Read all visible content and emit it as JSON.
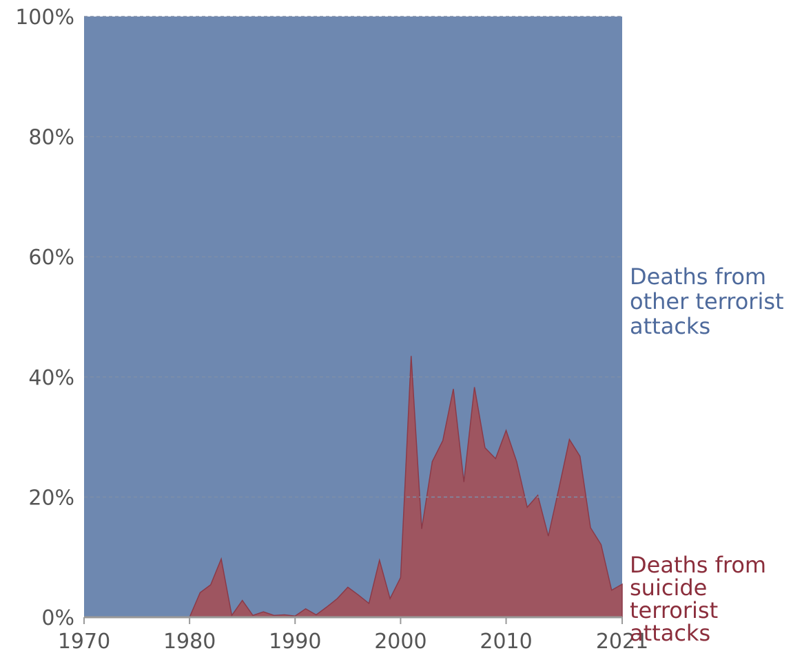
{
  "chart_data": {
    "type": "area",
    "stacked": true,
    "normalized": true,
    "title": "",
    "xlabel": "",
    "ylabel": "",
    "ylim": [
      0,
      100
    ],
    "xlim": [
      1970,
      2021
    ],
    "y_ticks": [
      "0%",
      "20%",
      "40%",
      "60%",
      "80%",
      "100%"
    ],
    "y_tick_values": [
      0,
      20,
      40,
      60,
      80,
      100
    ],
    "x_ticks": [
      "1970",
      "1980",
      "1990",
      "2000",
      "2010",
      "2021"
    ],
    "x_tick_values": [
      1970,
      1980,
      1990,
      2000,
      2010,
      2021
    ],
    "grid": "horizontal dashed",
    "legend": "right, inline labels",
    "x": [
      1970,
      1971,
      1972,
      1973,
      1974,
      1975,
      1976,
      1977,
      1978,
      1979,
      1980,
      1981,
      1982,
      1983,
      1984,
      1985,
      1986,
      1987,
      1988,
      1989,
      1990,
      1991,
      1992,
      1993,
      1994,
      1995,
      1996,
      1997,
      1998,
      1999,
      2000,
      2001,
      2002,
      2003,
      2004,
      2005,
      2006,
      2007,
      2008,
      2009,
      2010,
      2011,
      2012,
      2013,
      2014,
      2015,
      2016,
      2017,
      2018,
      2019,
      2020,
      2021
    ],
    "series": [
      {
        "name": "Deaths from suicide terrorist attacks",
        "color": "#9e5560",
        "label_color": "#8b2e3c",
        "values": [
          0,
          0,
          0,
          0,
          0,
          0,
          0,
          0,
          0,
          0,
          0,
          4.1,
          5.4,
          9.7,
          0.3,
          2.8,
          0.3,
          0.9,
          0.3,
          0.4,
          0.2,
          1.4,
          0.4,
          1.7,
          3.1,
          5,
          3.7,
          2.3,
          9.5,
          3.1,
          6.6,
          43.5,
          14.7,
          25.9,
          29.4,
          38,
          22.5,
          38.3,
          28.2,
          26.4,
          31.1,
          25.9,
          18.3,
          20.3,
          13.5,
          21.4,
          29.6,
          26.8,
          14.9,
          12.1,
          4.5,
          5.5
        ]
      },
      {
        "name": "Deaths from other terrorist attacks",
        "color": "#6e88b0",
        "label_color": "#4e6a9c",
        "values": [
          100,
          100,
          100,
          100,
          100,
          100,
          100,
          100,
          100,
          100,
          100,
          95.9,
          94.6,
          90.3,
          99.7,
          97.2,
          99.7,
          99.1,
          99.7,
          99.6,
          99.8,
          98.6,
          99.6,
          98.3,
          96.9,
          95,
          96.3,
          97.7,
          90.5,
          96.9,
          93.4,
          56.5,
          85.3,
          74.1,
          70.6,
          62,
          77.5,
          61.7,
          71.8,
          73.6,
          68.9,
          74.1,
          81.7,
          79.7,
          86.5,
          78.6,
          70.4,
          73.2,
          85.1,
          87.9,
          95.5,
          94.5
        ]
      }
    ],
    "series_labels": [
      {
        "lines": [
          "Deaths from",
          "other terrorist",
          "attacks"
        ]
      },
      {
        "lines": [
          "Deaths from",
          "suicide",
          "terrorist",
          "attacks"
        ]
      }
    ]
  }
}
